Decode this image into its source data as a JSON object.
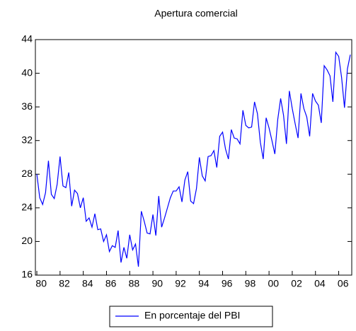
{
  "chart_data": {
    "type": "line",
    "title": "Apertura comercial",
    "categories": [
      "80",
      null,
      null,
      null,
      null,
      null,
      null,
      null,
      "82",
      null,
      null,
      null,
      null,
      null,
      null,
      null,
      "84",
      null,
      null,
      null,
      null,
      null,
      null,
      null,
      "86",
      null,
      null,
      null,
      null,
      null,
      null,
      null,
      "88",
      null,
      null,
      null,
      null,
      null,
      null,
      null,
      "90",
      null,
      null,
      null,
      null,
      null,
      null,
      null,
      "92",
      null,
      null,
      null,
      null,
      null,
      null,
      null,
      "94",
      null,
      null,
      null,
      null,
      null,
      null,
      null,
      "96",
      null,
      null,
      null,
      null,
      null,
      null,
      null,
      "98",
      null,
      null,
      null,
      null,
      null,
      null,
      null,
      "00",
      null,
      null,
      null,
      null,
      null,
      null,
      null,
      "02",
      null,
      null,
      null,
      null,
      null,
      null,
      null,
      "04",
      null,
      null,
      null,
      null,
      null,
      null,
      null,
      "06",
      null,
      null,
      null,
      null
    ],
    "series": [
      {
        "name": "En porcentaje del PBI",
        "color": "#0000ff",
        "values": [
          28,
          25.2,
          24.4,
          25.8,
          29.6,
          25.6,
          25.1,
          26.8,
          30.1,
          26.6,
          26.4,
          28.2,
          24.2,
          26.1,
          25.7,
          24.0,
          25.2,
          22.4,
          22.8,
          21.7,
          23.3,
          21.4,
          21.5,
          20.0,
          20.8,
          18.8,
          19.5,
          19.3,
          21.3,
          17.5,
          19.3,
          18.0,
          20.8,
          19.0,
          19.7,
          17.0,
          23.6,
          22.4,
          21.0,
          20.9,
          23.2,
          20.7,
          25.4,
          21.7,
          22.8,
          24.0,
          25.2,
          26.0,
          26.0,
          26.5,
          24.7,
          27.3,
          28.3,
          24.8,
          24.5,
          26.3,
          30.0,
          27.8,
          27.2,
          30.1,
          30.2,
          30.8,
          28.8,
          32.5,
          33.0,
          31.0,
          29.8,
          33.3,
          32.3,
          32.2,
          31.6,
          35.6,
          33.8,
          33.5,
          33.6,
          36.6,
          35.2,
          31.8,
          29.8,
          34.7,
          33.5,
          32.0,
          30.4,
          34.5,
          37.0,
          35.0,
          31.6,
          37.9,
          35.8,
          34.0,
          32.3,
          37.6,
          35.8,
          34.8,
          32.5,
          37.6,
          36.7,
          36.2,
          34.1,
          40.9,
          40.4,
          39.7,
          36.6,
          42.5,
          42.0,
          39.5,
          35.9,
          40.5,
          42.2
        ]
      }
    ],
    "ylim": [
      16,
      44
    ],
    "yticks": [
      16,
      20,
      24,
      28,
      32,
      36,
      40,
      44
    ],
    "legend": "bottom"
  }
}
